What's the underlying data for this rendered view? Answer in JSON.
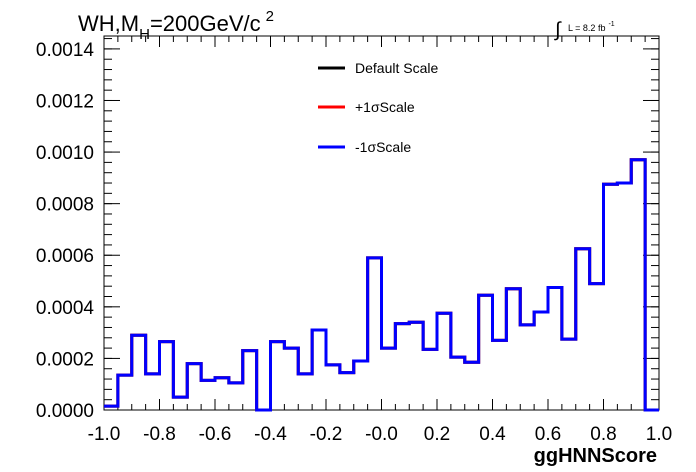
{
  "chart_data": {
    "type": "line",
    "title": {
      "main": "WH,M",
      "sub": "H",
      "rest": "=200GeV/c",
      "sup": "2"
    },
    "lumi": {
      "symbol": "∫",
      "text": "L = 8.2 fb",
      "sup": "-1"
    },
    "xlabel": "ggHNNScore",
    "ylabel": "",
    "xlim": [
      -1.0,
      1.0
    ],
    "ylim": [
      0.0,
      0.00145
    ],
    "x_ticks": [
      "-1.0",
      "-0.8",
      "-0.6",
      "-0.4",
      "-0.2",
      "-0.0",
      "0.2",
      "0.4",
      "0.6",
      "0.8",
      "1.0"
    ],
    "x_tick_values": [
      -1.0,
      -0.8,
      -0.6,
      -0.4,
      -0.2,
      0.0,
      0.2,
      0.4,
      0.6,
      0.8,
      1.0
    ],
    "y_ticks": [
      "0.0000",
      "0.0002",
      "0.0004",
      "0.0006",
      "0.0008",
      "0.0010",
      "0.0012",
      "0.0014"
    ],
    "y_tick_values": [
      0.0,
      0.0002,
      0.0004,
      0.0006,
      0.0008,
      0.001,
      0.0012,
      0.0014
    ],
    "bin_edges": [
      -1.0,
      -0.95,
      -0.9,
      -0.85,
      -0.8,
      -0.75,
      -0.7,
      -0.65,
      -0.6,
      -0.55,
      -0.5,
      -0.45,
      -0.4,
      -0.35,
      -0.3,
      -0.25,
      -0.2,
      -0.15,
      -0.1,
      -0.05,
      0.0,
      0.05,
      0.1,
      0.15,
      0.2,
      0.25,
      0.3,
      0.35,
      0.4,
      0.45,
      0.5,
      0.55,
      0.6,
      0.65,
      0.7,
      0.75,
      0.8,
      0.85,
      0.9,
      0.95,
      1.0
    ],
    "legend_position": "top-center",
    "series": [
      {
        "name": "Default Scale",
        "color": "#000000",
        "values": [
          1.5e-05,
          0.000135,
          0.00029,
          0.00014,
          0.000265,
          5e-05,
          0.00018,
          0.000115,
          0.000125,
          0.000105,
          0.00023,
          0.0,
          0.000265,
          0.00024,
          0.00014,
          0.00031,
          0.000175,
          0.000145,
          0.00019,
          0.00059,
          0.00024,
          0.000335,
          0.00034,
          0.000235,
          0.000375,
          0.000205,
          0.000185,
          0.000445,
          0.00027,
          0.00047,
          0.00033,
          0.00038,
          0.000475,
          0.000275,
          0.000625,
          0.00049,
          0.000875,
          0.00088,
          0.00097,
          0.0
        ]
      },
      {
        "name": "+1σScale",
        "color": "#ff0000",
        "values": [
          1.5e-05,
          0.000135,
          0.00029,
          0.00014,
          0.000265,
          5e-05,
          0.00018,
          0.000115,
          0.000125,
          0.000105,
          0.00023,
          0.0,
          0.000265,
          0.00024,
          0.00014,
          0.00031,
          0.000175,
          0.000145,
          0.00019,
          0.00059,
          0.00024,
          0.000335,
          0.00034,
          0.000235,
          0.000375,
          0.000205,
          0.000185,
          0.000445,
          0.00027,
          0.00047,
          0.00033,
          0.00038,
          0.000475,
          0.000275,
          0.000625,
          0.00049,
          0.000875,
          0.00088,
          0.00097,
          0.0
        ]
      },
      {
        "name": "-1σScale",
        "color": "#0000ff",
        "values": [
          1.5e-05,
          0.000135,
          0.00029,
          0.00014,
          0.000265,
          5e-05,
          0.00018,
          0.000115,
          0.000125,
          0.000105,
          0.00023,
          0.0,
          0.000265,
          0.00024,
          0.00014,
          0.00031,
          0.000175,
          0.000145,
          0.00019,
          0.00059,
          0.00024,
          0.000335,
          0.00034,
          0.000235,
          0.000375,
          0.000205,
          0.000185,
          0.000445,
          0.00027,
          0.00047,
          0.00033,
          0.00038,
          0.000475,
          0.000275,
          0.000625,
          0.00049,
          0.000875,
          0.00088,
          0.00097,
          0.0
        ]
      }
    ]
  }
}
